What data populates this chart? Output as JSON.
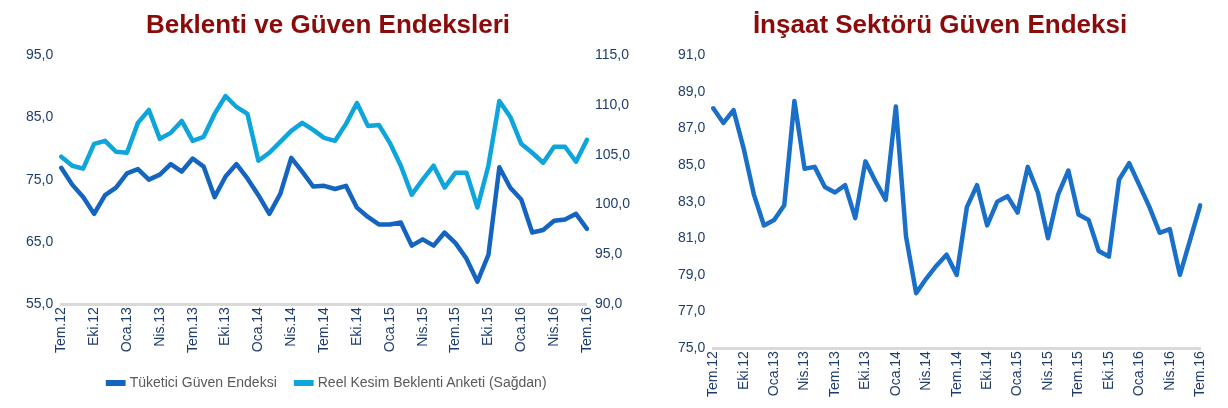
{
  "chart_data": [
    {
      "type": "line",
      "title": "Beklenti ve Güven Endeksleri",
      "categories": [
        "Tem.12",
        null,
        null,
        "Eki.12",
        null,
        null,
        "Oca.13",
        null,
        null,
        "Nis.13",
        null,
        null,
        "Tem.13",
        null,
        null,
        "Eki.13",
        null,
        null,
        "Oca.14",
        null,
        null,
        "Nis.14",
        null,
        null,
        "Tem.14",
        null,
        null,
        "Eki.14",
        null,
        null,
        "Oca.15",
        null,
        null,
        "Nis.15",
        null,
        null,
        "Tem.15",
        null,
        null,
        "Eki.15",
        null,
        null,
        "Oca.16",
        null,
        null,
        "Nis.16",
        null,
        null,
        "Tem.16"
      ],
      "series": [
        {
          "name": "Tüketici Güven Endeksi",
          "color": "#1565c0",
          "values": [
            76.9,
            74.2,
            72.2,
            69.5,
            72.5,
            73.7,
            76.0,
            76.7,
            75.0,
            75.8,
            77.5,
            76.3,
            78.4,
            77.1,
            72.2,
            75.5,
            77.5,
            75.2,
            72.5,
            69.5,
            72.7,
            78.5,
            76.3,
            73.9,
            74.0,
            73.5,
            74.0,
            70.5,
            69.0,
            67.8,
            67.8,
            68.1,
            64.4,
            65.4,
            64.4,
            66.5,
            64.8,
            62.3,
            58.6,
            62.9,
            77.0,
            73.7,
            71.8,
            66.5,
            66.9,
            68.4,
            68.6,
            69.5,
            67.1
          ]
        },
        {
          "name": "Reel Kesim Beklenti Anketi (Sağdan)",
          "color": "#0ea5dc",
          "axis": "y2",
          "values": [
            104.8,
            103.9,
            103.6,
            106.1,
            106.4,
            105.3,
            105.2,
            108.2,
            109.5,
            106.6,
            107.2,
            108.4,
            106.4,
            106.8,
            109.1,
            110.9,
            109.8,
            109.1,
            104.4,
            105.2,
            106.3,
            107.4,
            108.2,
            107.5,
            106.7,
            106.4,
            108.1,
            110.2,
            107.9,
            108.0,
            106.2,
            103.9,
            101.0,
            102.5,
            103.9,
            101.7,
            103.2,
            103.2,
            99.7,
            103.9,
            110.4,
            108.8,
            106.1,
            105.2,
            104.2,
            105.8,
            105.8,
            104.3,
            106.5
          ]
        }
      ],
      "ylim": [
        55,
        95
      ],
      "yticks": [
        {
          "value": 55,
          "label": "55,0"
        },
        {
          "value": 65,
          "label": "65,0"
        },
        {
          "value": 75,
          "label": "75,0"
        },
        {
          "value": 85,
          "label": "85,0"
        },
        {
          "value": 95,
          "label": "95,0"
        }
      ],
      "y2lim": [
        90,
        115
      ],
      "y2ticks": [
        {
          "value": 90,
          "label": "90,0"
        },
        {
          "value": 95,
          "label": "95,0"
        },
        {
          "value": 100,
          "label": "100,0"
        },
        {
          "value": 105,
          "label": "105,0"
        },
        {
          "value": 110,
          "label": "110,0"
        },
        {
          "value": 115,
          "label": "115,0"
        }
      ],
      "grid": false,
      "legend": "bottom",
      "marker": "none",
      "line_style": "solid"
    },
    {
      "type": "line",
      "title": "İnşaat Sektörü Güven Endeksi",
      "categories": [
        "Tem.12",
        null,
        null,
        "Eki.12",
        null,
        null,
        "Oca.13",
        null,
        null,
        "Nis.13",
        null,
        null,
        "Tem.13",
        null,
        null,
        "Eki.13",
        null,
        null,
        "Oca.14",
        null,
        null,
        "Nis.14",
        null,
        null,
        "Tem.14",
        null,
        null,
        "Eki.14",
        null,
        null,
        "Oca.15",
        null,
        null,
        "Nis.15",
        null,
        null,
        "Tem.15",
        null,
        null,
        "Eki.15",
        null,
        null,
        "Oca.16",
        null,
        null,
        "Nis.16",
        null,
        null,
        "Tem.16"
      ],
      "series": [
        {
          "color": "#1a6fc9",
          "values": [
            88.1,
            87.3,
            88.0,
            85.9,
            83.4,
            81.7,
            82.0,
            82.8,
            88.5,
            84.8,
            84.9,
            83.8,
            83.5,
            83.9,
            82.1,
            85.2,
            84.1,
            83.1,
            88.2,
            81.1,
            78.0,
            78.8,
            79.5,
            80.1,
            79.0,
            82.7,
            83.9,
            81.7,
            83.0,
            83.3,
            82.4,
            84.9,
            83.5,
            81.0,
            83.4,
            84.7,
            82.3,
            82.0,
            80.3,
            80.0,
            84.2,
            85.1,
            83.9,
            82.7,
            81.3,
            81.5,
            79.0,
            80.9,
            82.8
          ]
        }
      ],
      "ylim": [
        75,
        91
      ],
      "yticks": [
        {
          "value": 75,
          "label": "75,0"
        },
        {
          "value": 77,
          "label": "77,0"
        },
        {
          "value": 79,
          "label": "79,0"
        },
        {
          "value": 81,
          "label": "81,0"
        },
        {
          "value": 83,
          "label": "83,0"
        },
        {
          "value": 85,
          "label": "85,0"
        },
        {
          "value": 87,
          "label": "87,0"
        },
        {
          "value": 89,
          "label": "89,0"
        },
        {
          "value": 91,
          "label": "91,0"
        }
      ],
      "grid": false,
      "legend": false,
      "marker": "none",
      "line_style": "solid"
    }
  ]
}
